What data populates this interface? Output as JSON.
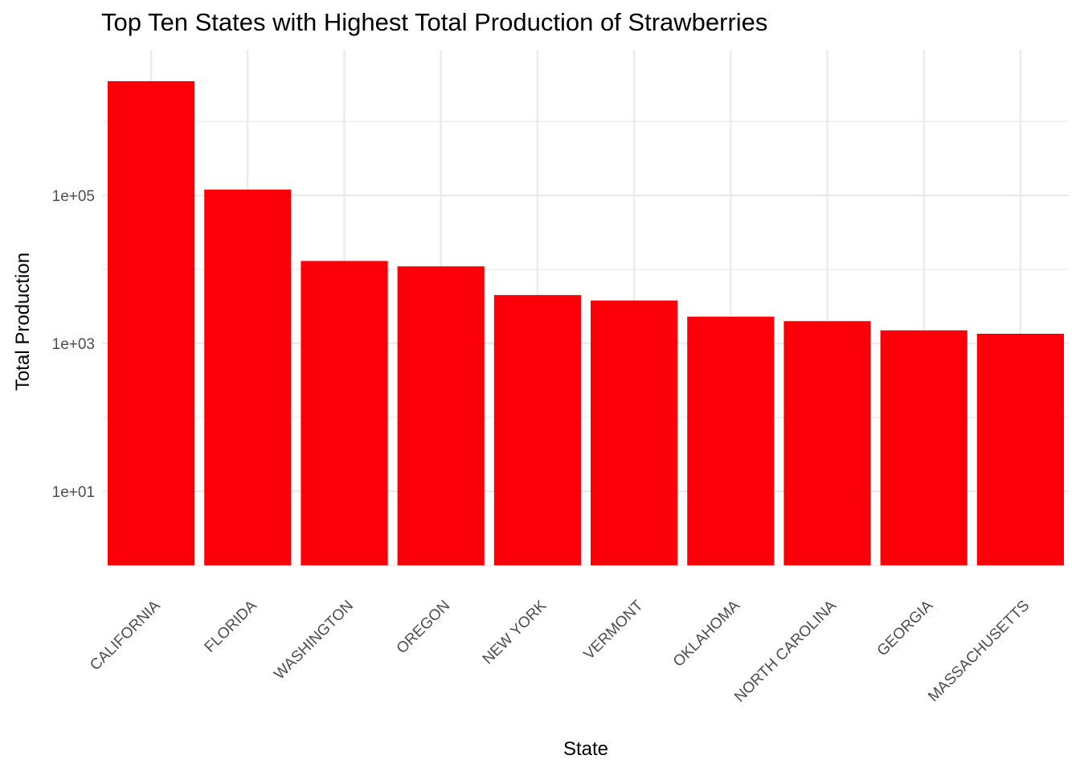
{
  "chart_data": {
    "type": "bar",
    "title": "Top Ten States with Highest Total Production of Strawberries",
    "xlabel": "State",
    "ylabel": "Total Production",
    "yscale": "log10",
    "categories": [
      "CALIFORNIA",
      "FLORIDA",
      "WASHINGTON",
      "OREGON",
      "NEW YORK",
      "VERMONT",
      "OKLAHOMA",
      "NORTH CAROLINA",
      "GEORGIA",
      "MASSACHUSETTS"
    ],
    "values": [
      3500000,
      120000,
      13000,
      11000,
      4500,
      3800,
      2300,
      2000,
      1500,
      1350
    ],
    "yticks": [
      10,
      1000,
      100000
    ],
    "ytick_labels": [
      "1e+01",
      "1e+03",
      "1e+05"
    ],
    "ylim": [
      1,
      5000000
    ],
    "bar_color": "#fb0008",
    "grid": true,
    "legend": "none"
  }
}
